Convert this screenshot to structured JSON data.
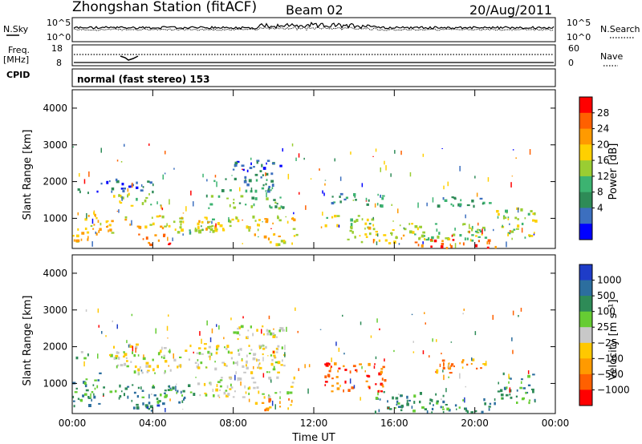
{
  "header": {
    "station": "Zhongshan Station (fitACF)",
    "beam": "Beam 02",
    "date": "20/Aug/2011"
  },
  "strip_panels": {
    "nsky_label": "N.Sky",
    "nsky_ticks": [
      "10^5",
      "10^0"
    ],
    "nsearch_label": "N.Search",
    "nsearch_ticks": [
      "10^5",
      "10^0"
    ],
    "freq_label": "Freq.",
    "freq_unit": "[MHz]",
    "freq_ticks": [
      "18",
      "8"
    ],
    "nave_label": "Nave",
    "nave_ticks": [
      "60",
      "0"
    ],
    "cpid_label": "CPID",
    "cpid_text": "normal (fast stereo) 153"
  },
  "colorbars": {
    "power": {
      "label": "Power [dB]",
      "ticks": [
        "28",
        "24",
        "20",
        "16",
        "12",
        "8",
        "4"
      ],
      "colors": [
        "#ff0000",
        "#ff6000",
        "#ff9a00",
        "#ffd000",
        "#9acd32",
        "#3cb371",
        "#2e8b57",
        "#3c6fbf",
        "#0000ff"
      ]
    },
    "velocity": {
      "label": "Velocity [m s⁻¹]",
      "ticks": [
        "1000",
        "500",
        "100",
        "25",
        "−25",
        "−100",
        "−500",
        "−1000"
      ],
      "colors": [
        "#1e3cc8",
        "#2c6e9e",
        "#2e8b57",
        "#66cc33",
        "#c8c8c8",
        "#ffc800",
        "#ff9a00",
        "#ff6000",
        "#ff0000"
      ]
    }
  },
  "chart_data": [
    {
      "type": "heatmap",
      "title": "Power",
      "ylabel": "Slant Range [km]",
      "xlabel": "Time UT",
      "x_ticks": [
        "00:00",
        "04:00",
        "08:00",
        "12:00",
        "16:00",
        "20:00",
        "00:00"
      ],
      "y_ticks": [
        "4000",
        "3000",
        "2000",
        "1000"
      ],
      "xlim": [
        0,
        24
      ],
      "ylim": [
        180,
        4500
      ],
      "colorbar": "power",
      "bands": [
        {
          "t0": 0.0,
          "t1": 1.2,
          "r0": 400,
          "r1": 1250,
          "level": 5
        },
        {
          "t0": 0.0,
          "t1": 0.8,
          "r0": 1700,
          "r1": 1900,
          "level": 2
        },
        {
          "t0": 0.6,
          "t1": 2.2,
          "r0": 600,
          "r1": 1000,
          "level": 5
        },
        {
          "t0": 1.2,
          "t1": 4.0,
          "r0": 1750,
          "r1": 2100,
          "level": 1
        },
        {
          "t0": 2.0,
          "t1": 4.5,
          "r0": 1350,
          "r1": 1700,
          "level": 4
        },
        {
          "t0": 2.5,
          "t1": 5.5,
          "r0": 750,
          "r1": 1100,
          "level": 5
        },
        {
          "t0": 3.2,
          "t1": 5.0,
          "r0": 300,
          "r1": 600,
          "level": 7
        },
        {
          "t0": 4.5,
          "t1": 7.5,
          "r0": 600,
          "r1": 1000,
          "level": 4
        },
        {
          "t0": 6.2,
          "t1": 11.0,
          "r0": 700,
          "r1": 1100,
          "level": 5
        },
        {
          "t0": 6.5,
          "t1": 10.5,
          "r0": 1300,
          "r1": 1650,
          "level": 3
        },
        {
          "t0": 7.0,
          "t1": 10.0,
          "r0": 1750,
          "r1": 2150,
          "level": 2
        },
        {
          "t0": 7.8,
          "t1": 10.5,
          "r0": 2200,
          "r1": 2600,
          "level": 1
        },
        {
          "t0": 9.0,
          "t1": 11.2,
          "r0": 300,
          "r1": 600,
          "level": 5
        },
        {
          "t0": 12.8,
          "t1": 15.5,
          "r0": 1350,
          "r1": 1700,
          "level": 2
        },
        {
          "t0": 12.5,
          "t1": 15.0,
          "r0": 800,
          "r1": 1100,
          "level": 4
        },
        {
          "t0": 13.5,
          "t1": 16.5,
          "r0": 350,
          "r1": 800,
          "level": 5
        },
        {
          "t0": 16.0,
          "t1": 20.5,
          "r0": 400,
          "r1": 900,
          "level": 4
        },
        {
          "t0": 17.0,
          "t1": 21.0,
          "r0": 200,
          "r1": 450,
          "level": 7
        },
        {
          "t0": 18.0,
          "t1": 20.8,
          "r0": 1350,
          "r1": 1650,
          "level": 2
        },
        {
          "t0": 21.0,
          "t1": 23.0,
          "r0": 500,
          "r1": 1300,
          "level": 4
        }
      ]
    },
    {
      "type": "heatmap",
      "title": "Velocity",
      "ylabel": "Slant Range [km]",
      "xlabel": "Time UT",
      "x_ticks": [
        "00:00",
        "04:00",
        "08:00",
        "12:00",
        "16:00",
        "20:00",
        "00:00"
      ],
      "y_ticks": [
        "4000",
        "3000",
        "2000",
        "1000"
      ],
      "xlim": [
        0,
        24
      ],
      "ylim": [
        180,
        4500
      ],
      "colorbar": "velocity",
      "bands": [
        {
          "t0": 0.0,
          "t1": 0.8,
          "r0": 1700,
          "r1": 1950,
          "level": 5
        },
        {
          "t0": 0.0,
          "t1": 1.5,
          "r0": 400,
          "r1": 1300,
          "level": 6
        },
        {
          "t0": 1.5,
          "t1": 6.0,
          "r0": 500,
          "r1": 1000,
          "level": 6
        },
        {
          "t0": 1.8,
          "t1": 10.5,
          "r0": 1300,
          "r1": 2100,
          "level": 4
        },
        {
          "t0": 6.0,
          "t1": 11.0,
          "r0": 650,
          "r1": 1200,
          "level": 4
        },
        {
          "t0": 3.0,
          "t1": 5.5,
          "r0": 280,
          "r1": 550,
          "level": 7
        },
        {
          "t0": 7.5,
          "t1": 10.5,
          "r0": 2200,
          "r1": 2600,
          "level": 4
        },
        {
          "t0": 9.0,
          "t1": 11.2,
          "r0": 300,
          "r1": 600,
          "level": 2
        },
        {
          "t0": 12.5,
          "t1": 15.5,
          "r0": 800,
          "r1": 1600,
          "level": 1
        },
        {
          "t0": 15.0,
          "t1": 18.5,
          "r0": 250,
          "r1": 800,
          "level": 6
        },
        {
          "t0": 17.5,
          "t1": 21.0,
          "r0": 220,
          "r1": 600,
          "level": 6
        },
        {
          "t0": 18.0,
          "t1": 20.8,
          "r0": 1300,
          "r1": 1700,
          "level": 2
        },
        {
          "t0": 21.0,
          "t1": 23.0,
          "r0": 500,
          "r1": 1300,
          "level": 6
        }
      ]
    }
  ]
}
